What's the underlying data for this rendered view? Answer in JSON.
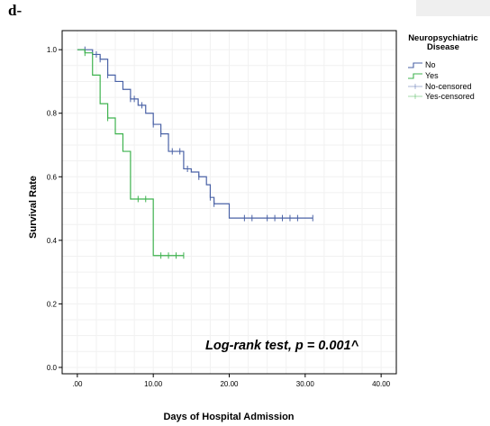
{
  "panel_label": "d-",
  "chart_data": {
    "type": "line",
    "subtype": "kaplan-meier",
    "xlabel": "Days of Hospital Admission",
    "ylabel": "Survival Rate",
    "xlim": [
      -2,
      42
    ],
    "ylim": [
      -0.02,
      1.06
    ],
    "x_ticks": [
      0,
      10,
      20,
      30,
      40
    ],
    "x_tick_labels": [
      ".00",
      "10.00",
      "20.00",
      "30.00",
      "40.00"
    ],
    "y_ticks": [
      0.0,
      0.2,
      0.4,
      0.6,
      0.8,
      1.0
    ],
    "y_tick_labels": [
      "0.0",
      "0.2",
      "0.4",
      "0.6",
      "0.8",
      "1.0"
    ],
    "grid": true,
    "legend": {
      "title": "Neuropsychiatric Disease",
      "title_lines": [
        "Neuropsychiatric",
        "Disease"
      ],
      "placement": "right",
      "entries": [
        "No",
        "Yes",
        "No-censored",
        "Yes-censored"
      ]
    },
    "annotation": "Log-rank test, p = 0.001^",
    "series": [
      {
        "name": "No",
        "color": "#4a62a6",
        "steps": [
          [
            0,
            1.0
          ],
          [
            2,
            0.985
          ],
          [
            3,
            0.97
          ],
          [
            4,
            0.92
          ],
          [
            5,
            0.9
          ],
          [
            6,
            0.875
          ],
          [
            7,
            0.845
          ],
          [
            8,
            0.825
          ],
          [
            9,
            0.8
          ],
          [
            10,
            0.765
          ],
          [
            11,
            0.735
          ],
          [
            12,
            0.68
          ],
          [
            14,
            0.625
          ],
          [
            15,
            0.615
          ],
          [
            16,
            0.6
          ],
          [
            17,
            0.575
          ],
          [
            17.5,
            0.535
          ],
          [
            18,
            0.515
          ],
          [
            20,
            0.47
          ],
          [
            31,
            0.47
          ]
        ],
        "censored": [
          1,
          2.5,
          3,
          4,
          7,
          7.5,
          8.5,
          10,
          11,
          12.5,
          13.5,
          14.5,
          16,
          17.5,
          18,
          22,
          23,
          25,
          26,
          27,
          28,
          29,
          31
        ]
      },
      {
        "name": "Yes",
        "color": "#3fb34f",
        "steps": [
          [
            0,
            1.0
          ],
          [
            1,
            0.99
          ],
          [
            2,
            0.92
          ],
          [
            3,
            0.83
          ],
          [
            4,
            0.785
          ],
          [
            5,
            0.735
          ],
          [
            6,
            0.68
          ],
          [
            7,
            0.53
          ],
          [
            10,
            0.352
          ],
          [
            14,
            0.352
          ]
        ],
        "censored": [
          1,
          4,
          8,
          9,
          11,
          12,
          13,
          14
        ]
      }
    ]
  }
}
